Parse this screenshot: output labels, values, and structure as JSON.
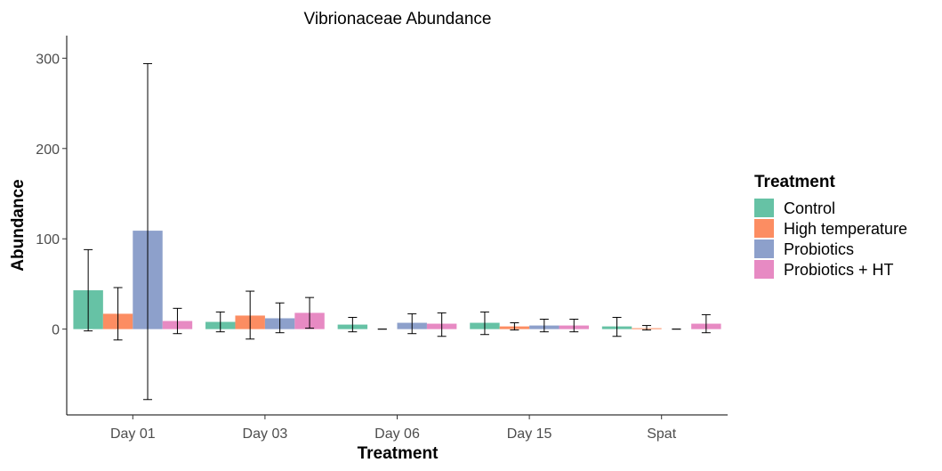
{
  "chart_data": {
    "type": "bar",
    "title": "Vibrionaceae Abundance",
    "xlabel": "Treatment",
    "ylabel": "Abundance",
    "categories": [
      "Day 01",
      "Day 03",
      "Day 06",
      "Day 15",
      "Spat"
    ],
    "ylim": [
      -95,
      325
    ],
    "yticks": [
      0,
      100,
      200,
      300
    ],
    "grid": false,
    "legend": {
      "title": "Treatment",
      "position": "right"
    },
    "series": [
      {
        "name": "Control",
        "color": "#66C2A5",
        "values": [
          43,
          8,
          5,
          7,
          3
        ],
        "err_low": [
          -2,
          -3,
          -3,
          -6,
          -8
        ],
        "err_high": [
          88,
          19,
          13,
          19,
          13
        ]
      },
      {
        "name": "High temperature",
        "color": "#FC8D62",
        "values": [
          17,
          15,
          0,
          3,
          1
        ],
        "err_low": [
          -12,
          -11,
          0,
          -1,
          -1
        ],
        "err_high": [
          46,
          42,
          0,
          7,
          4
        ]
      },
      {
        "name": "Probiotics",
        "color": "#8DA0CB",
        "values": [
          109,
          12,
          7,
          4,
          0
        ],
        "err_low": [
          -78,
          -4,
          -5,
          -3,
          0
        ],
        "err_high": [
          294,
          29,
          17,
          11,
          0
        ]
      },
      {
        "name": "Probiotics + HT",
        "color": "#E78AC3",
        "values": [
          9,
          18,
          6,
          4,
          6
        ],
        "err_low": [
          -5,
          1,
          -8,
          -3,
          -4
        ],
        "err_high": [
          23,
          35,
          18,
          11,
          16
        ]
      }
    ]
  }
}
